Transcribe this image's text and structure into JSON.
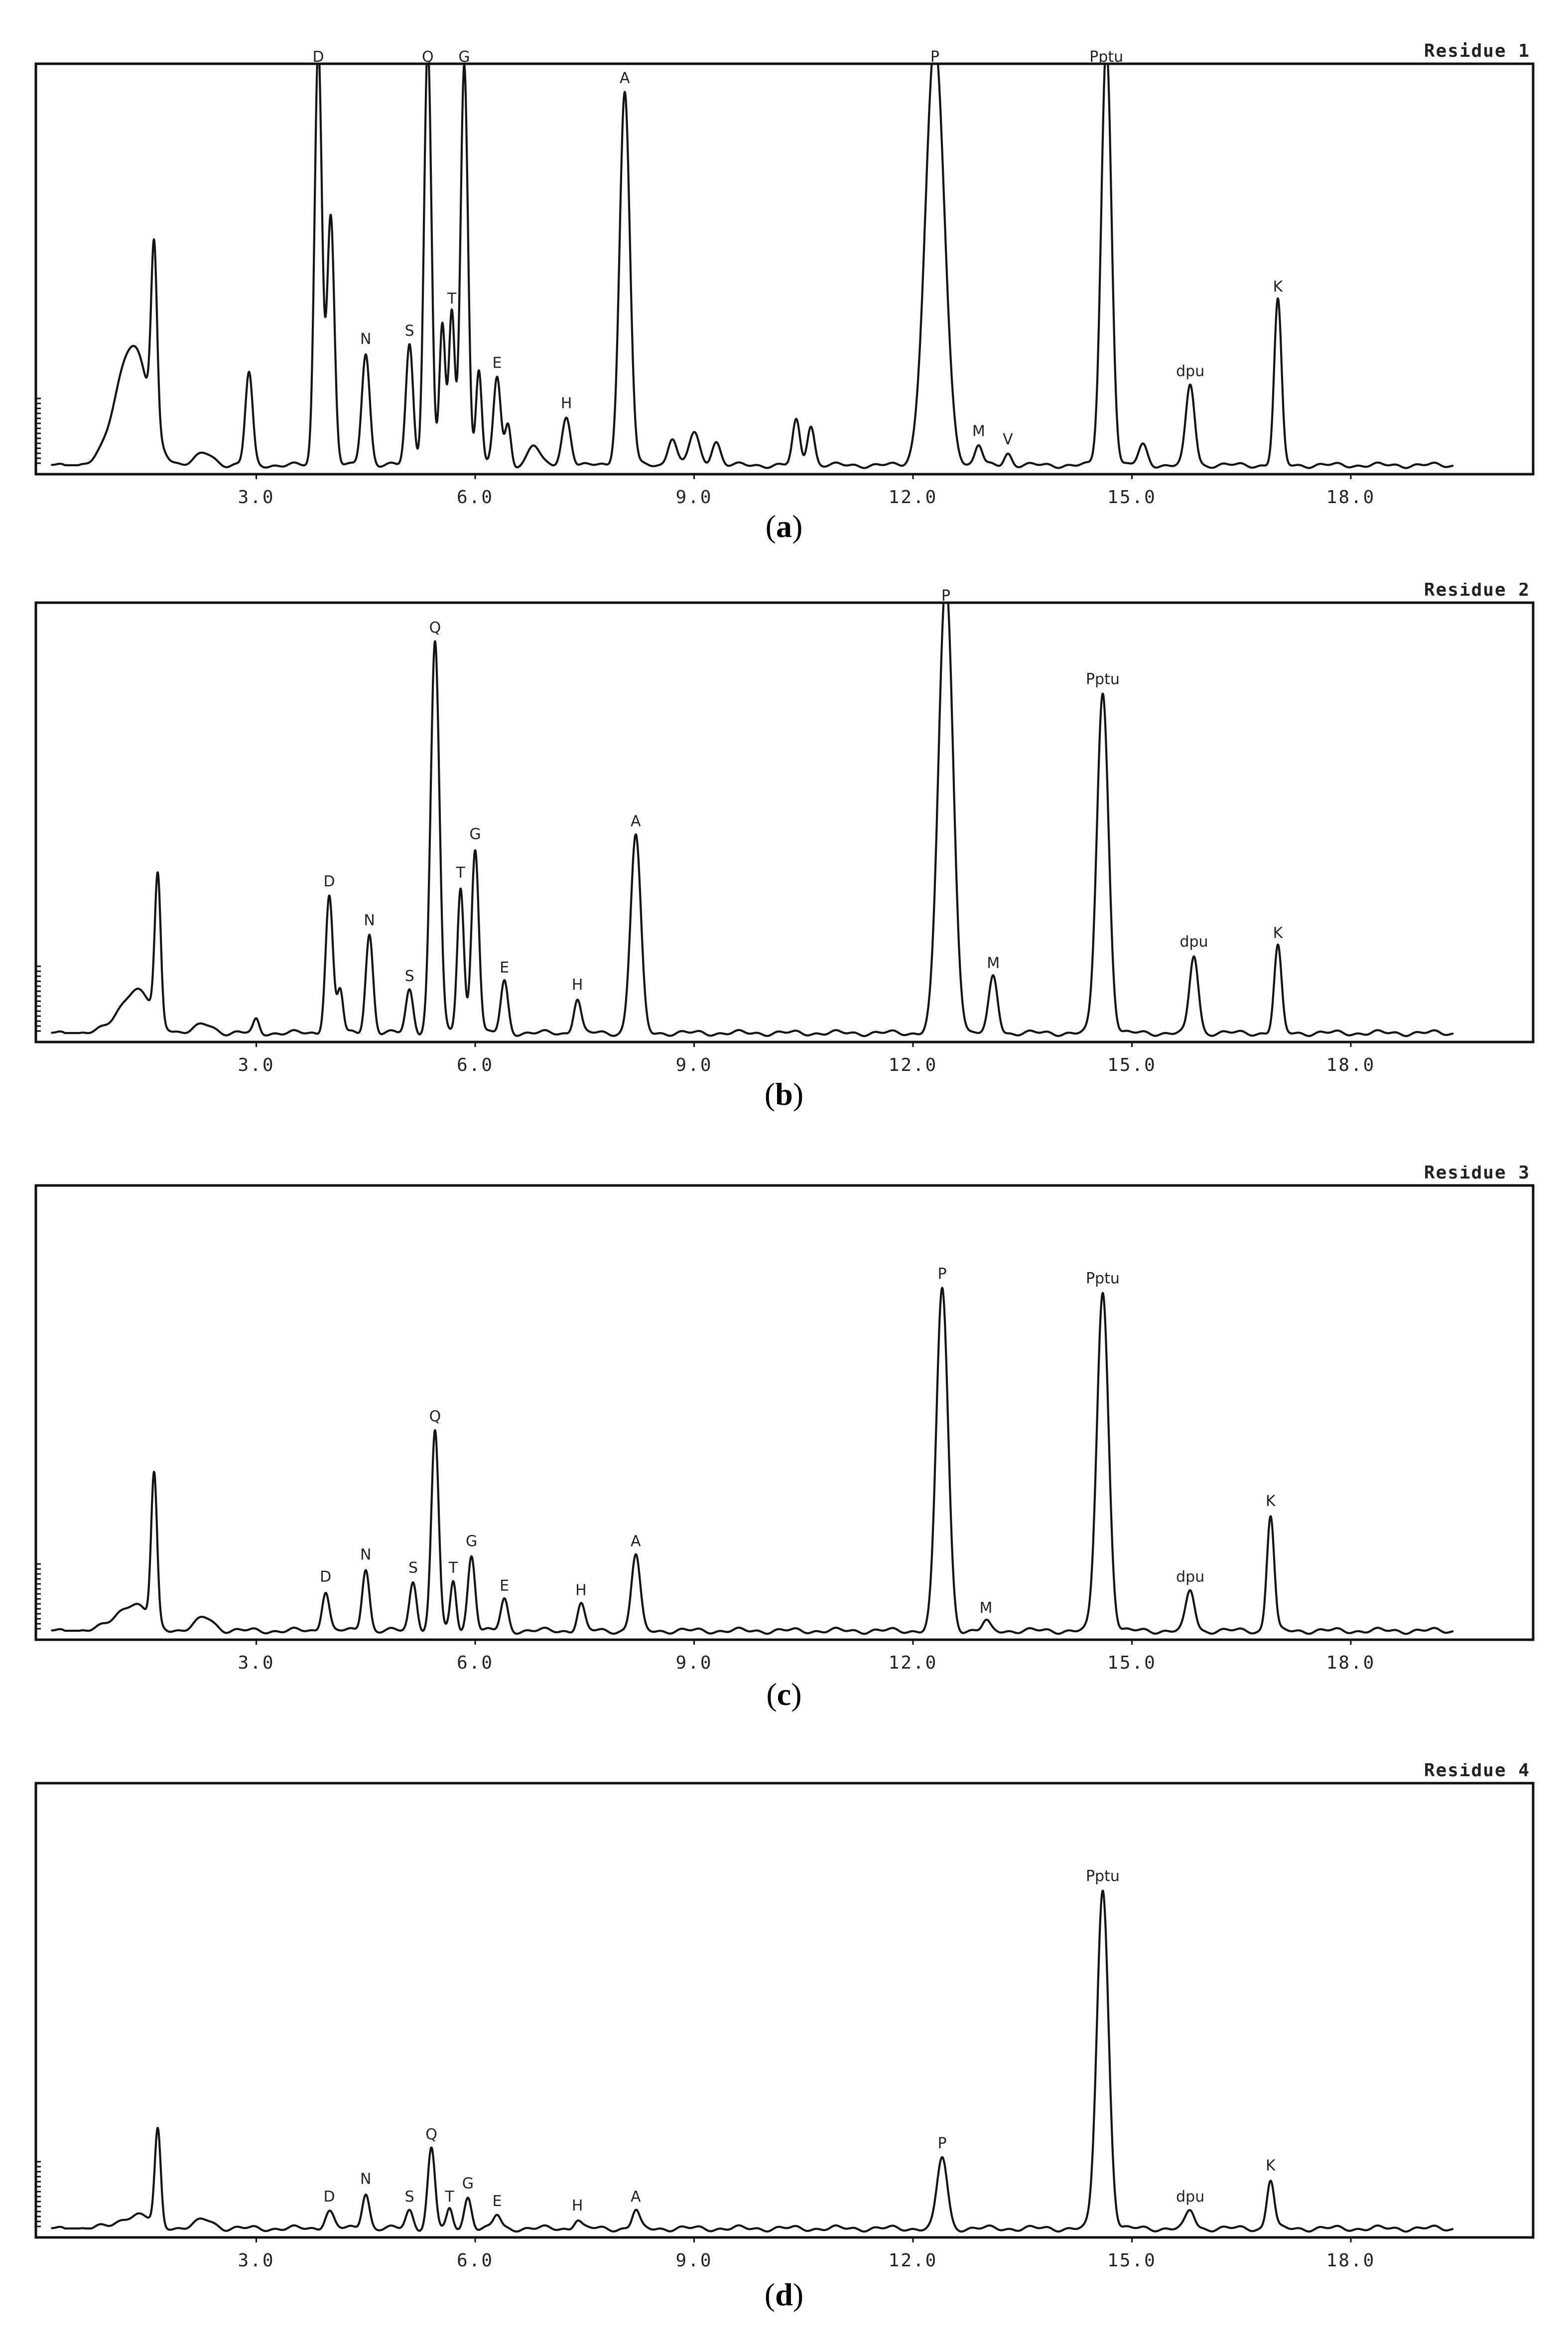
{
  "chart_data": [
    {
      "type": "line",
      "title": "Residue 1",
      "caption": "a",
      "x_ticks": [
        "3.0",
        "6.0",
        "9.0",
        "12.0",
        "15.0",
        "18.0"
      ],
      "xlim": [
        0,
        20
      ],
      "peaks": [
        {
          "label": "",
          "x": 1.3,
          "h": 0.3,
          "w": 0.22
        },
        {
          "label": "",
          "x": 1.6,
          "h": 0.44,
          "w": 0.04
        },
        {
          "label": "",
          "x": 2.3,
          "h": 0.03,
          "w": 0.12
        },
        {
          "label": "",
          "x": 2.9,
          "h": 0.23,
          "w": 0.05
        },
        {
          "label": "D",
          "x": 3.85,
          "h": 1.05,
          "w": 0.05
        },
        {
          "label": "",
          "x": 4.02,
          "h": 0.62,
          "w": 0.05
        },
        {
          "label": "N",
          "x": 4.5,
          "h": 0.28,
          "w": 0.055
        },
        {
          "label": "S",
          "x": 5.1,
          "h": 0.3,
          "w": 0.05
        },
        {
          "label": "Q",
          "x": 5.35,
          "h": 1.05,
          "w": 0.05
        },
        {
          "label": "",
          "x": 5.55,
          "h": 0.35,
          "w": 0.04
        },
        {
          "label": "T",
          "x": 5.68,
          "h": 0.38,
          "w": 0.04
        },
        {
          "label": "G",
          "x": 5.85,
          "h": 1.0,
          "w": 0.05
        },
        {
          "label": "",
          "x": 6.05,
          "h": 0.24,
          "w": 0.04
        },
        {
          "label": "E",
          "x": 6.3,
          "h": 0.22,
          "w": 0.05
        },
        {
          "label": "",
          "x": 6.45,
          "h": 0.1,
          "w": 0.04
        },
        {
          "label": "",
          "x": 6.8,
          "h": 0.05,
          "w": 0.08
        },
        {
          "label": "H",
          "x": 7.25,
          "h": 0.12,
          "w": 0.06
        },
        {
          "label": "A",
          "x": 8.05,
          "h": 0.93,
          "w": 0.07
        },
        {
          "label": "",
          "x": 8.7,
          "h": 0.07,
          "w": 0.06
        },
        {
          "label": "",
          "x": 9.0,
          "h": 0.08,
          "w": 0.07
        },
        {
          "label": "",
          "x": 9.3,
          "h": 0.06,
          "w": 0.06
        },
        {
          "label": "",
          "x": 10.4,
          "h": 0.11,
          "w": 0.05
        },
        {
          "label": "",
          "x": 10.6,
          "h": 0.1,
          "w": 0.05
        },
        {
          "label": "P",
          "x": 12.3,
          "h": 1.05,
          "w": 0.13
        },
        {
          "label": "M",
          "x": 12.9,
          "h": 0.05,
          "w": 0.05
        },
        {
          "label": "V",
          "x": 13.3,
          "h": 0.03,
          "w": 0.05
        },
        {
          "label": "Pptu",
          "x": 14.65,
          "h": 1.05,
          "w": 0.07
        },
        {
          "label": "",
          "x": 15.15,
          "h": 0.05,
          "w": 0.06
        },
        {
          "label": "dpu",
          "x": 15.8,
          "h": 0.2,
          "w": 0.06
        },
        {
          "label": "K",
          "x": 17.0,
          "h": 0.41,
          "w": 0.05
        }
      ]
    },
    {
      "type": "line",
      "title": "Residue 2",
      "caption": "b",
      "x_ticks": [
        "3.0",
        "6.0",
        "9.0",
        "12.0",
        "15.0",
        "18.0"
      ],
      "xlim": [
        0,
        20
      ],
      "peaks": [
        {
          "label": "",
          "x": 1.35,
          "h": 0.1,
          "w": 0.22
        },
        {
          "label": "",
          "x": 1.65,
          "h": 0.33,
          "w": 0.04
        },
        {
          "label": "",
          "x": 2.3,
          "h": 0.02,
          "w": 0.12
        },
        {
          "label": "",
          "x": 3.0,
          "h": 0.03,
          "w": 0.04
        },
        {
          "label": "D",
          "x": 4.0,
          "h": 0.32,
          "w": 0.05
        },
        {
          "label": "",
          "x": 4.15,
          "h": 0.1,
          "w": 0.04
        },
        {
          "label": "N",
          "x": 4.55,
          "h": 0.23,
          "w": 0.05
        },
        {
          "label": "S",
          "x": 5.1,
          "h": 0.1,
          "w": 0.05
        },
        {
          "label": "Q",
          "x": 5.45,
          "h": 0.91,
          "w": 0.06
        },
        {
          "label": "T",
          "x": 5.8,
          "h": 0.34,
          "w": 0.045
        },
        {
          "label": "G",
          "x": 6.0,
          "h": 0.43,
          "w": 0.05
        },
        {
          "label": "E",
          "x": 6.4,
          "h": 0.12,
          "w": 0.05
        },
        {
          "label": "H",
          "x": 7.4,
          "h": 0.08,
          "w": 0.05
        },
        {
          "label": "A",
          "x": 8.2,
          "h": 0.46,
          "w": 0.07
        },
        {
          "label": "P",
          "x": 12.45,
          "h": 1.05,
          "w": 0.1
        },
        {
          "label": "M",
          "x": 13.1,
          "h": 0.13,
          "w": 0.06
        },
        {
          "label": "Pptu",
          "x": 14.6,
          "h": 0.79,
          "w": 0.08
        },
        {
          "label": "dpu",
          "x": 15.85,
          "h": 0.18,
          "w": 0.06
        },
        {
          "label": "K",
          "x": 17.0,
          "h": 0.2,
          "w": 0.05
        }
      ]
    },
    {
      "type": "line",
      "title": "Residue 3",
      "caption": "c",
      "x_ticks": [
        "3.0",
        "6.0",
        "9.0",
        "12.0",
        "15.0",
        "18.0"
      ],
      "xlim": [
        0,
        20
      ],
      "peaks": [
        {
          "label": "",
          "x": 1.3,
          "h": 0.06,
          "w": 0.22
        },
        {
          "label": "",
          "x": 1.6,
          "h": 0.33,
          "w": 0.04
        },
        {
          "label": "",
          "x": 2.3,
          "h": 0.03,
          "w": 0.12
        },
        {
          "label": "D",
          "x": 3.95,
          "h": 0.09,
          "w": 0.05
        },
        {
          "label": "N",
          "x": 4.5,
          "h": 0.14,
          "w": 0.05
        },
        {
          "label": "S",
          "x": 5.15,
          "h": 0.11,
          "w": 0.05
        },
        {
          "label": "Q",
          "x": 5.45,
          "h": 0.45,
          "w": 0.05
        },
        {
          "label": "T",
          "x": 5.7,
          "h": 0.11,
          "w": 0.04
        },
        {
          "label": "G",
          "x": 5.95,
          "h": 0.17,
          "w": 0.05
        },
        {
          "label": "E",
          "x": 6.4,
          "h": 0.07,
          "w": 0.05
        },
        {
          "label": "H",
          "x": 7.45,
          "h": 0.06,
          "w": 0.05
        },
        {
          "label": "A",
          "x": 8.2,
          "h": 0.17,
          "w": 0.06
        },
        {
          "label": "P",
          "x": 12.4,
          "h": 0.77,
          "w": 0.08
        },
        {
          "label": "M",
          "x": 13.0,
          "h": 0.02,
          "w": 0.05
        },
        {
          "label": "Pptu",
          "x": 14.6,
          "h": 0.76,
          "w": 0.08
        },
        {
          "label": "dpu",
          "x": 15.8,
          "h": 0.09,
          "w": 0.06
        },
        {
          "label": "K",
          "x": 16.9,
          "h": 0.26,
          "w": 0.05
        }
      ]
    },
    {
      "type": "line",
      "title": "Residue 4",
      "caption": "d",
      "x_ticks": [
        "3.0",
        "6.0",
        "9.0",
        "12.0",
        "15.0",
        "18.0"
      ],
      "xlim": [
        0,
        20
      ],
      "peaks": [
        {
          "label": "",
          "x": 1.35,
          "h": 0.03,
          "w": 0.22
        },
        {
          "label": "",
          "x": 1.65,
          "h": 0.21,
          "w": 0.04
        },
        {
          "label": "",
          "x": 2.3,
          "h": 0.02,
          "w": 0.12
        },
        {
          "label": "D",
          "x": 4.0,
          "h": 0.04,
          "w": 0.06
        },
        {
          "label": "N",
          "x": 4.5,
          "h": 0.08,
          "w": 0.05
        },
        {
          "label": "S",
          "x": 5.1,
          "h": 0.04,
          "w": 0.05
        },
        {
          "label": "Q",
          "x": 5.4,
          "h": 0.18,
          "w": 0.05
        },
        {
          "label": "T",
          "x": 5.65,
          "h": 0.04,
          "w": 0.04
        },
        {
          "label": "G",
          "x": 5.9,
          "h": 0.07,
          "w": 0.05
        },
        {
          "label": "E",
          "x": 6.3,
          "h": 0.03,
          "w": 0.05
        },
        {
          "label": "H",
          "x": 7.4,
          "h": 0.02,
          "w": 0.05
        },
        {
          "label": "A",
          "x": 8.2,
          "h": 0.04,
          "w": 0.05
        },
        {
          "label": "P",
          "x": 12.4,
          "h": 0.16,
          "w": 0.07
        },
        {
          "label": "Pptu",
          "x": 14.6,
          "h": 0.76,
          "w": 0.08
        },
        {
          "label": "dpu",
          "x": 15.8,
          "h": 0.04,
          "w": 0.06
        },
        {
          "label": "K",
          "x": 16.9,
          "h": 0.11,
          "w": 0.05
        }
      ]
    }
  ]
}
